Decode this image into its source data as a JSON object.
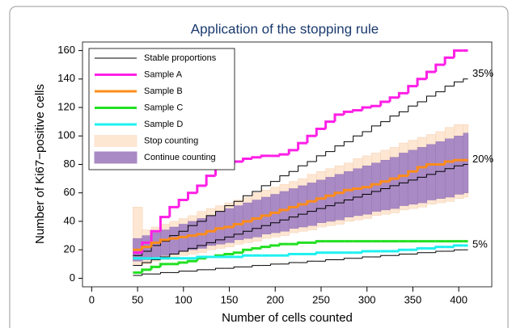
{
  "chart_data": {
    "type": "step",
    "title": "Application of the stopping rule",
    "x_label": "Number of cells counted",
    "y_label": "Number of Ki67−positive cells",
    "xlim": [
      -10,
      436
    ],
    "ylim": [
      -6,
      166
    ],
    "xticks": [
      0,
      50,
      100,
      150,
      200,
      250,
      300,
      350,
      400
    ],
    "yticks": [
      0,
      20,
      40,
      60,
      80,
      100,
      120,
      140,
      160
    ],
    "legend": "upper left",
    "x": [
      45,
      55,
      65,
      75,
      85,
      95,
      105,
      115,
      125,
      135,
      145,
      155,
      165,
      175,
      185,
      195,
      205,
      215,
      225,
      235,
      245,
      255,
      265,
      275,
      285,
      295,
      305,
      315,
      325,
      335,
      345,
      355,
      365,
      375,
      385,
      395,
      405
    ],
    "bands": [
      {
        "name": "Stop counting",
        "color": "#fde6d2",
        "lower": [
          9,
          10,
          12,
          13,
          14,
          16,
          17,
          18,
          20,
          21,
          22,
          24,
          25,
          26,
          28,
          29,
          30,
          32,
          33,
          34,
          36,
          37,
          38,
          40,
          41,
          42,
          44,
          45,
          46,
          48,
          49,
          50,
          52,
          53,
          54,
          56,
          57
        ],
        "upper": [
          50,
          34,
          36,
          38,
          40,
          42,
          44,
          47,
          49,
          51,
          53,
          55,
          57,
          60,
          62,
          64,
          66,
          68,
          70,
          73,
          75,
          77,
          79,
          81,
          84,
          86,
          88,
          90,
          92,
          95,
          97,
          99,
          101,
          103,
          106,
          108,
          108
        ]
      },
      {
        "name": "Continue counting",
        "color": "#a98ac4",
        "lower": [
          12,
          13,
          15,
          16,
          17,
          19,
          20,
          21,
          23,
          24,
          25,
          27,
          28,
          29,
          31,
          32,
          33,
          35,
          36,
          37,
          39,
          40,
          41,
          43,
          44,
          45,
          47,
          48,
          49,
          51,
          52,
          53,
          55,
          56,
          57,
          59,
          60
        ],
        "upper": [
          28,
          30,
          32,
          34,
          36,
          38,
          40,
          42,
          44,
          47,
          49,
          51,
          53,
          55,
          57,
          59,
          61,
          63,
          65,
          67,
          69,
          71,
          73,
          75,
          77,
          79,
          81,
          83,
          85,
          88,
          90,
          92,
          94,
          96,
          98,
          100,
          102
        ]
      }
    ],
    "reference": {
      "name": "Stable proportions",
      "color": "#000000",
      "lines": [
        {
          "label": "35%",
          "values": [
            16,
            19,
            23,
            26,
            30,
            33,
            37,
            40,
            44,
            47,
            51,
            54,
            58,
            61,
            65,
            68,
            72,
            75,
            79,
            82,
            86,
            89,
            93,
            96,
            100,
            103,
            107,
            110,
            114,
            117,
            121,
            124,
            128,
            131,
            135,
            138,
            140
          ]
        },
        {
          "label": "20%",
          "values": [
            9,
            11,
            13,
            15,
            17,
            19,
            21,
            23,
            25,
            27,
            29,
            31,
            33,
            35,
            37,
            39,
            41,
            43,
            45,
            47,
            49,
            51,
            53,
            55,
            57,
            59,
            61,
            63,
            65,
            67,
            69,
            71,
            73,
            75,
            77,
            79,
            80
          ]
        },
        {
          "label": "5%",
          "values": [
            2,
            3,
            3,
            4,
            4,
            5,
            5,
            6,
            6,
            7,
            7,
            8,
            8,
            9,
            9,
            10,
            10,
            11,
            11,
            12,
            12,
            13,
            13,
            14,
            14,
            15,
            15,
            16,
            16,
            17,
            17,
            18,
            18,
            19,
            19,
            20,
            20
          ]
        }
      ]
    },
    "series": [
      {
        "name": "Sample A",
        "color": "#ff1fe6",
        "values": [
          18,
          25,
          33,
          43,
          50,
          55,
          60,
          65,
          72,
          77,
          80,
          82,
          84,
          85,
          86,
          86,
          87,
          90,
          95,
          100,
          105,
          110,
          115,
          117,
          118,
          120,
          121,
          124,
          127,
          130,
          135,
          140,
          145,
          150,
          155,
          160,
          160
        ]
      },
      {
        "name": "Sample B",
        "color": "#ff8c1a",
        "values": [
          20,
          22,
          25,
          27,
          28,
          29,
          30,
          31,
          33,
          35,
          36,
          38,
          40,
          42,
          44,
          46,
          48,
          50,
          52,
          54,
          56,
          58,
          60,
          62,
          63,
          64,
          66,
          68,
          70,
          72,
          75,
          78,
          80,
          80,
          82,
          83,
          83
        ]
      },
      {
        "name": "Sample C",
        "color": "#22e022",
        "values": [
          4,
          6,
          8,
          10,
          10,
          11,
          12,
          14,
          15,
          16,
          17,
          18,
          20,
          21,
          22,
          23,
          24,
          24,
          25,
          25,
          26,
          26,
          26,
          26,
          26,
          26,
          26,
          26,
          26,
          26,
          26,
          26,
          26,
          26,
          26,
          26,
          26
        ]
      },
      {
        "name": "Sample D",
        "color": "#1ff0f0",
        "values": [
          14,
          14,
          14,
          14,
          14,
          14,
          14,
          15,
          15,
          15,
          15,
          15,
          16,
          16,
          16,
          16,
          16,
          17,
          17,
          17,
          18,
          18,
          18,
          18,
          18,
          19,
          19,
          19,
          19,
          20,
          20,
          21,
          21,
          22,
          22,
          23,
          23
        ]
      }
    ]
  }
}
